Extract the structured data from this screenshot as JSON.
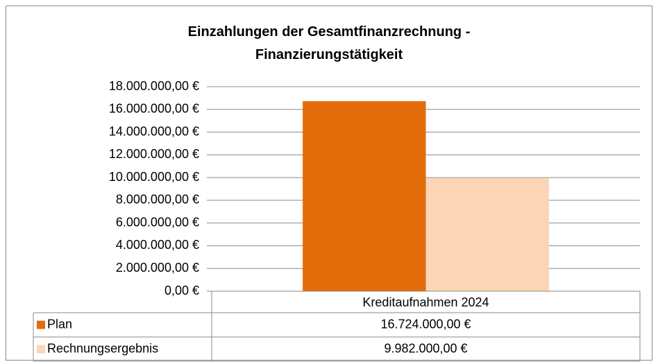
{
  "chart_data": {
    "type": "bar",
    "title": "Einzahlungen der Gesamtfinanzrechnung - Finanzierungstätigkeit",
    "categories": [
      "Kreditaufnahmen 2024"
    ],
    "series": [
      {
        "name": "Plan",
        "color": "#e36c0a",
        "values": [
          16724000
        ],
        "value_labels": [
          "16.724.000,00 €"
        ]
      },
      {
        "name": "Rechnungsergebnis",
        "color": "#fbd5b5",
        "values": [
          9982000
        ],
        "value_labels": [
          "9.982.000,00 €"
        ]
      }
    ],
    "ylim": [
      0,
      18000000
    ],
    "yticks": [
      {
        "value": 0,
        "label": "0,00 €"
      },
      {
        "value": 2000000,
        "label": "2.000.000,00 €"
      },
      {
        "value": 4000000,
        "label": "4.000.000,00 €"
      },
      {
        "value": 6000000,
        "label": "6.000.000,00 €"
      },
      {
        "value": 8000000,
        "label": "8.000.000,00 €"
      },
      {
        "value": 10000000,
        "label": "10.000.000,00 €"
      },
      {
        "value": 12000000,
        "label": "12.000.000,00 €"
      },
      {
        "value": 14000000,
        "label": "14.000.000,00 €"
      },
      {
        "value": 16000000,
        "label": "16.000.000,00 €"
      },
      {
        "value": 18000000,
        "label": "18.000.000,00 €"
      }
    ],
    "grid": true
  }
}
